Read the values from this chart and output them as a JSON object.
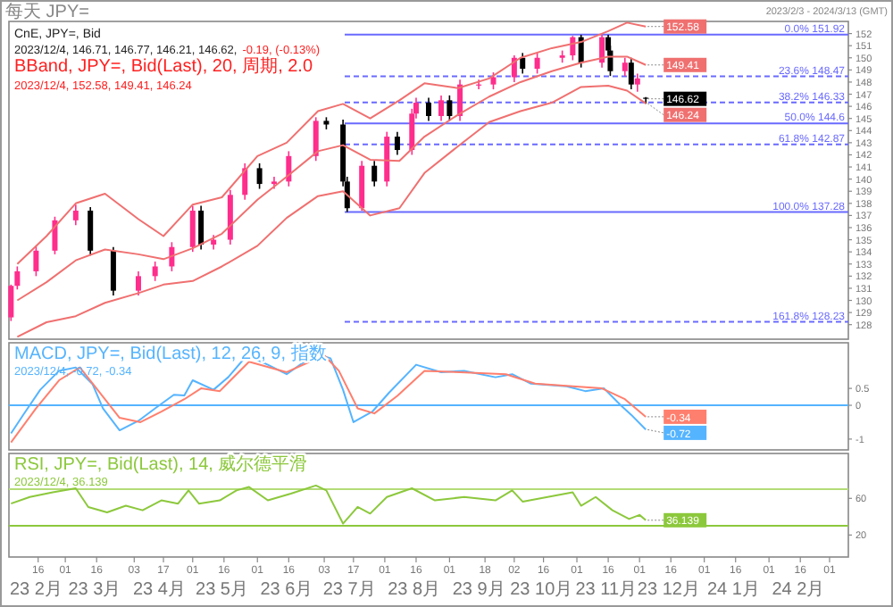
{
  "chart_data": [
    {
      "type": "candlestick",
      "title": "CnE, JPY=, Bid",
      "subtitle": "2023/12/4, 146.71, 146.77, 146.21, 146.62,",
      "x": [
        "2023-02-03",
        "2023-02-06",
        "2023-02-15",
        "2023-02-24",
        "2023-03-06",
        "2023-03-13",
        "2023-03-24",
        "2023-04-05",
        "2023-04-13",
        "2023-04-21",
        "2023-05-01",
        "2023-05-05",
        "2023-05-11",
        "2023-05-19",
        "2023-05-26",
        "2023-06-02",
        "2023-06-09",
        "2023-06-16",
        "2023-06-29",
        "2023-07-04",
        "2023-07-12",
        "2023-07-14",
        "2023-07-21",
        "2023-07-27",
        "2023-08-02",
        "2023-08-07",
        "2023-08-14",
        "2023-08-16",
        "2023-08-22",
        "2023-08-28",
        "2023-09-01",
        "2023-09-06",
        "2023-09-15",
        "2023-09-22",
        "2023-10-02",
        "2023-10-06",
        "2023-10-13",
        "2023-10-25",
        "2023-10-30",
        "2023-11-03",
        "2023-11-13",
        "2023-11-16",
        "2023-11-17",
        "2023-11-24",
        "2023-11-27",
        "2023-11-30",
        "2023-12-04"
      ],
      "ohlc": [
        [
          128.6,
          131.3,
          128.3,
          131.2
        ],
        [
          131.2,
          132.8,
          130.9,
          132.4
        ],
        [
          132.4,
          134.5,
          132.0,
          134.1
        ],
        [
          134.1,
          136.9,
          133.8,
          136.6
        ],
        [
          136.6,
          137.9,
          136.2,
          137.4
        ],
        [
          137.4,
          137.7,
          133.7,
          134.1
        ],
        [
          134.1,
          134.4,
          130.4,
          130.8
        ],
        [
          130.8,
          132.4,
          130.4,
          132.0
        ],
        [
          132.0,
          133.2,
          131.6,
          132.8
        ],
        [
          132.8,
          134.8,
          132.4,
          134.4
        ],
        [
          134.4,
          137.8,
          134.0,
          137.4
        ],
        [
          137.4,
          137.8,
          134.2,
          134.6
        ],
        [
          134.6,
          135.4,
          134.2,
          135.0
        ],
        [
          135.0,
          139.1,
          134.6,
          138.7
        ],
        [
          138.7,
          141.3,
          138.3,
          140.9
        ],
        [
          140.9,
          141.3,
          139.2,
          139.6
        ],
        [
          139.6,
          140.2,
          139.2,
          139.8
        ],
        [
          139.8,
          142.3,
          139.4,
          141.9
        ],
        [
          141.9,
          145.1,
          141.5,
          144.8
        ],
        [
          144.8,
          145.1,
          144.1,
          144.5
        ],
        [
          144.5,
          144.9,
          139.4,
          139.8
        ],
        [
          139.8,
          140.2,
          137.28,
          137.6
        ],
        [
          137.6,
          141.5,
          137.4,
          141.1
        ],
        [
          141.1,
          141.5,
          139.4,
          139.8
        ],
        [
          139.8,
          143.9,
          139.4,
          143.5
        ],
        [
          143.5,
          143.9,
          142.0,
          142.4
        ],
        [
          142.4,
          145.8,
          142.0,
          145.4
        ],
        [
          145.4,
          146.7,
          145.0,
          146.3
        ],
        [
          146.3,
          146.7,
          144.8,
          145.2
        ],
        [
          145.2,
          146.9,
          144.8,
          146.5
        ],
        [
          146.5,
          146.9,
          144.8,
          145.2
        ],
        [
          145.2,
          148.2,
          144.8,
          147.8
        ],
        [
          147.8,
          148.2,
          147.4,
          147.8
        ],
        [
          147.8,
          148.8,
          147.4,
          148.4
        ],
        [
          148.4,
          150.2,
          148.0,
          150.0
        ],
        [
          150.0,
          150.4,
          148.7,
          149.1
        ],
        [
          149.1,
          150.4,
          148.7,
          150.0
        ],
        [
          150.0,
          150.6,
          149.6,
          150.2
        ],
        [
          150.2,
          151.8,
          149.8,
          151.7
        ],
        [
          151.7,
          151.9,
          149.2,
          149.6
        ],
        [
          149.6,
          151.92,
          149.2,
          151.7
        ],
        [
          151.7,
          151.9,
          150.2,
          150.6
        ],
        [
          150.6,
          151.0,
          148.5,
          148.9
        ],
        [
          148.9,
          150.0,
          148.5,
          149.6
        ],
        [
          149.6,
          150.0,
          147.4,
          147.8
        ],
        [
          147.8,
          148.7,
          147.2,
          148.3
        ],
        [
          146.71,
          146.77,
          146.21,
          146.62
        ]
      ],
      "series": [
        {
          "type": "line",
          "color": "#f07070",
          "x": [
            "2023-02-06",
            "2023-02-20",
            "2023-03-06",
            "2023-03-20",
            "2023-04-05",
            "2023-04-17",
            "2023-05-01",
            "2023-05-15",
            "2023-06-01",
            "2023-06-15",
            "2023-06-30",
            "2023-07-12",
            "2023-07-25",
            "2023-08-08",
            "2023-08-20",
            "2023-09-05",
            "2023-09-20",
            "2023-10-05",
            "2023-10-20",
            "2023-11-03",
            "2023-11-16",
            "2023-11-25",
            "2023-12-04"
          ],
          "values": [
            133,
            135.3,
            138,
            138.8,
            136.7,
            135.3,
            137.9,
            138.5,
            141.9,
            143,
            145.6,
            146.2,
            145,
            146.5,
            147.9,
            147.5,
            148.3,
            150,
            150.8,
            151.3,
            152.2,
            152.9,
            152.58
          ]
        },
        {
          "type": "line",
          "color": "#f07070",
          "x": [
            "2023-02-06",
            "2023-02-20",
            "2023-03-06",
            "2023-03-20",
            "2023-04-05",
            "2023-04-17",
            "2023-05-01",
            "2023-05-15",
            "2023-06-01",
            "2023-06-15",
            "2023-06-30",
            "2023-07-12",
            "2023-07-25",
            "2023-08-08",
            "2023-08-20",
            "2023-09-05",
            "2023-09-20",
            "2023-10-05",
            "2023-10-20",
            "2023-11-03",
            "2023-11-16",
            "2023-11-25",
            "2023-12-04"
          ],
          "values": [
            130,
            131.5,
            133.3,
            134.2,
            133.8,
            133.4,
            134.3,
            135.5,
            138.3,
            140.2,
            142.3,
            142.8,
            141.6,
            141.5,
            143.5,
            145.3,
            146.8,
            148,
            148.9,
            149.6,
            150.1,
            150.1,
            149.41
          ]
        },
        {
          "type": "line",
          "color": "#f07070",
          "x": [
            "2023-02-06",
            "2023-02-20",
            "2023-03-06",
            "2023-03-20",
            "2023-04-05",
            "2023-04-17",
            "2023-05-01",
            "2023-05-15",
            "2023-06-01",
            "2023-06-15",
            "2023-06-30",
            "2023-07-12",
            "2023-07-25",
            "2023-08-08",
            "2023-08-20",
            "2023-09-05",
            "2023-09-20",
            "2023-10-05",
            "2023-10-20",
            "2023-11-03",
            "2023-11-16",
            "2023-11-25",
            "2023-12-04"
          ],
          "values": [
            127,
            128.2,
            128.7,
            129.8,
            130.6,
            131.3,
            131.6,
            132.8,
            134.5,
            136.8,
            138.6,
            139,
            137,
            137.6,
            140.5,
            142.7,
            144.7,
            145.6,
            146.3,
            147.6,
            147.7,
            147.3,
            146.24
          ]
        }
      ],
      "xlim": [
        "2023-02-02",
        "2024-03-10"
      ],
      "ylim": [
        126.8,
        153
      ],
      "yticks": [
        128,
        129,
        130,
        131,
        132,
        133,
        134,
        135,
        136,
        137,
        138,
        139,
        140,
        141,
        142,
        143,
        144,
        145,
        146,
        147,
        148,
        149,
        150,
        151,
        152
      ],
      "tick_labels": "y",
      "ref_lines": [
        {
          "axis": "y",
          "value": 151.92,
          "label": "0.0%  151.92",
          "color": "#6a6aff",
          "line_style": "solid"
        },
        {
          "axis": "y",
          "value": 148.47,
          "label": "23.6%  148.47",
          "color": "#6a6aff",
          "line_style": "dashed"
        },
        {
          "axis": "y",
          "value": 146.33,
          "label": "38.2%  146.33",
          "color": "#6a6aff",
          "line_style": "dashed"
        },
        {
          "axis": "y",
          "value": 144.6,
          "label": "50.0%  144.6",
          "color": "#6a6aff",
          "line_style": "solid"
        },
        {
          "axis": "y",
          "value": 142.87,
          "label": "61.8%  142.87",
          "color": "#6a6aff",
          "line_style": "dashed"
        },
        {
          "axis": "y",
          "value": 137.28,
          "label": "100.0%  137.28",
          "color": "#6a6aff",
          "line_style": "solid"
        },
        {
          "axis": "y",
          "value": 128.23,
          "label": "161.8%  128.23",
          "color": "#6a6aff",
          "line_style": "dashed"
        }
      ],
      "annotations": [
        "-0.19, (-0.13%)",
        "BBand, JPY=, Bid(Last), 20, 周期, 2.0",
        "2023/12/4, 152.58, 149.41, 146.24",
        "每天 JPY=",
        "2023/2/3 - 2024/3/13 (GMT)",
        {
          "text": "152.58",
          "x": "2023-12-04",
          "y": 152.58
        },
        {
          "text": "149.41",
          "x": "2023-12-04",
          "y": 149.41
        },
        {
          "text": "146.62",
          "x": "2023-12-04",
          "y": 146.62
        },
        {
          "text": "146.24",
          "x": "2023-12-04",
          "y": 146.24
        }
      ]
    },
    {
      "type": "line",
      "title": "MACD, JPY=, Bid(Last), 12, 26, 9, 指数",
      "subtitle": "2023/12/4, -0.72, -0.34",
      "series": [
        {
          "color": "#55b4ff",
          "x": [
            "2023-02-03",
            "2023-02-09",
            "2023-02-17",
            "2023-02-26",
            "2023-03-06",
            "2023-03-14",
            "2023-03-19",
            "2023-03-27",
            "2023-04-05",
            "2023-04-13",
            "2023-04-22",
            "2023-04-27",
            "2023-05-01",
            "2023-05-11",
            "2023-05-18",
            "2023-05-27",
            "2023-06-06",
            "2023-06-15",
            "2023-06-29",
            "2023-07-06",
            "2023-07-12",
            "2023-07-17",
            "2023-07-26",
            "2023-08-03",
            "2023-08-16",
            "2023-08-28",
            "2023-09-08",
            "2023-09-23",
            "2023-10-01",
            "2023-10-10",
            "2023-10-27",
            "2023-11-05",
            "2023-11-14",
            "2023-11-22",
            "2023-11-27",
            "2023-12-04"
          ],
          "values": [
            -0.83,
            -0.27,
            0.46,
            1.02,
            1.12,
            0.63,
            -0.09,
            -0.74,
            -0.46,
            -0.09,
            0.31,
            0.29,
            0.74,
            0.46,
            0.83,
            1.48,
            1.2,
            0.92,
            1.53,
            1.39,
            0.46,
            -0.5,
            -0.19,
            0.37,
            1.2,
            0.98,
            1.02,
            0.83,
            0.92,
            0.64,
            0.56,
            0.42,
            0.5,
            0,
            -0.28,
            -0.72
          ]
        },
        {
          "color": "#ff7f6e",
          "x": [
            "2023-02-03",
            "2023-02-15",
            "2023-02-26",
            "2023-03-08",
            "2023-03-15",
            "2023-03-27",
            "2023-04-06",
            "2023-04-16",
            "2023-04-27",
            "2023-05-05",
            "2023-05-14",
            "2023-05-28",
            "2023-06-15",
            "2023-07-03",
            "2023-07-10",
            "2023-07-19",
            "2023-07-27",
            "2023-08-07",
            "2023-08-20",
            "2023-09-06",
            "2023-09-28",
            "2023-10-12",
            "2023-10-30",
            "2023-11-13",
            "2023-11-24",
            "2023-12-04"
          ],
          "values": [
            -1.1,
            -0.09,
            0.74,
            1.12,
            0.57,
            -0.37,
            -0.5,
            -0.19,
            0.18,
            0.5,
            0.42,
            1.29,
            0.98,
            1.48,
            1.02,
            -0.09,
            -0.24,
            0.28,
            1.02,
            0.98,
            0.92,
            0.64,
            0.56,
            0.5,
            0.18,
            -0.34
          ]
        }
      ],
      "xlim": [
        "2023-02-02",
        "2024-03-10"
      ],
      "ylim": [
        -1.32,
        1.85
      ],
      "yticks": [
        -1,
        0,
        0.5
      ],
      "tick_labels": "y",
      "ref_lines": [
        {
          "axis": "y",
          "value": 0,
          "color": "#55b4ff",
          "line_style": "solid"
        }
      ],
      "annotations": [
        {
          "text": "-0.34",
          "x": "2023-12-04",
          "y": -0.34
        },
        {
          "text": "-0.72",
          "x": "2023-12-04",
          "y": -0.72
        }
      ]
    },
    {
      "type": "line",
      "title": "RSI, JPY=, Bid(Last), 14, 威尔德平滑",
      "subtitle": "2023/12/4, 36.139",
      "series": [
        {
          "color": "#8cc83c",
          "x": [
            "2023-02-03",
            "2023-02-12",
            "2023-02-23",
            "2023-03-06",
            "2023-03-12",
            "2023-03-21",
            "2023-03-30",
            "2023-04-07",
            "2023-04-16",
            "2023-04-24",
            "2023-04-29",
            "2023-05-04",
            "2023-05-14",
            "2023-05-22",
            "2023-05-28",
            "2023-06-06",
            "2023-06-17",
            "2023-06-29",
            "2023-07-04",
            "2023-07-12",
            "2023-07-19",
            "2023-07-25",
            "2023-08-02",
            "2023-08-14",
            "2023-08-25",
            "2023-09-08",
            "2023-09-23",
            "2023-10-01",
            "2023-10-06",
            "2023-10-18",
            "2023-10-30",
            "2023-11-03",
            "2023-11-10",
            "2023-11-18",
            "2023-11-26",
            "2023-12-01",
            "2023-12-04"
          ],
          "values": [
            54.3,
            61.5,
            66.6,
            71,
            50.6,
            44.7,
            52,
            47,
            57.8,
            54.3,
            68.7,
            54.3,
            57.8,
            68.7,
            72.4,
            57.8,
            65.2,
            74,
            68.7,
            32.5,
            50.6,
            43.4,
            61.5,
            71,
            57.8,
            61.5,
            57.8,
            68.7,
            56.5,
            61.5,
            66.6,
            52,
            61.5,
            47,
            37.5,
            41.9,
            36.139
          ]
        }
      ],
      "xlim": [
        "2023-02-02",
        "2024-03-10"
      ],
      "ylim": [
        -4,
        109
      ],
      "yticks": [
        20,
        60
      ],
      "xticks": [
        {
          "value": "2023-02-16",
          "label": "16"
        },
        {
          "value": "2023-03-01",
          "label": "01"
        },
        {
          "value": "2023-03-16",
          "label": "16"
        },
        {
          "value": "2023-04-03",
          "label": "03"
        },
        {
          "value": "2023-04-17",
          "label": "17"
        },
        {
          "value": "2023-05-01",
          "label": "01"
        },
        {
          "value": "2023-05-16",
          "label": "16"
        },
        {
          "value": "2023-06-01",
          "label": "01"
        },
        {
          "value": "2023-06-16",
          "label": "16"
        },
        {
          "value": "2023-07-03",
          "label": "03"
        },
        {
          "value": "2023-07-17",
          "label": "17"
        },
        {
          "value": "2023-08-01",
          "label": "01"
        },
        {
          "value": "2023-08-16",
          "label": "16"
        },
        {
          "value": "2023-09-01",
          "label": "01"
        },
        {
          "value": "2023-09-18",
          "label": "18"
        },
        {
          "value": "2023-10-02",
          "label": "02"
        },
        {
          "value": "2023-10-16",
          "label": "16"
        },
        {
          "value": "2023-11-01",
          "label": "01"
        },
        {
          "value": "2023-11-16",
          "label": "16"
        },
        {
          "value": "2023-12-01",
          "label": "01"
        },
        {
          "value": "2023-12-16",
          "label": "16"
        },
        {
          "value": "2024-01-01",
          "label": "01"
        },
        {
          "value": "2024-01-16",
          "label": "16"
        },
        {
          "value": "2024-02-01",
          "label": "01"
        },
        {
          "value": "2024-02-16",
          "label": "16"
        },
        {
          "value": "2024-03-01",
          "label": "01"
        }
      ],
      "ref_lines": [
        {
          "axis": "y",
          "value": 70,
          "color": "#b4dc78",
          "line_style": "solid"
        },
        {
          "axis": "y",
          "value": 30,
          "color": "#8cc83c",
          "line_style": "solid"
        }
      ],
      "annotations": [
        {
          "text": "36.139",
          "x": "2023-12-04",
          "y": 36.139
        },
        "23 2月",
        "23 3月",
        "23 4月",
        "23 5月",
        "23 6月",
        "23 7月",
        "23 8月",
        "23 9月",
        "23 10月",
        "23 11月",
        "23 12月",
        "24 1月",
        "24 2月"
      ]
    }
  ]
}
